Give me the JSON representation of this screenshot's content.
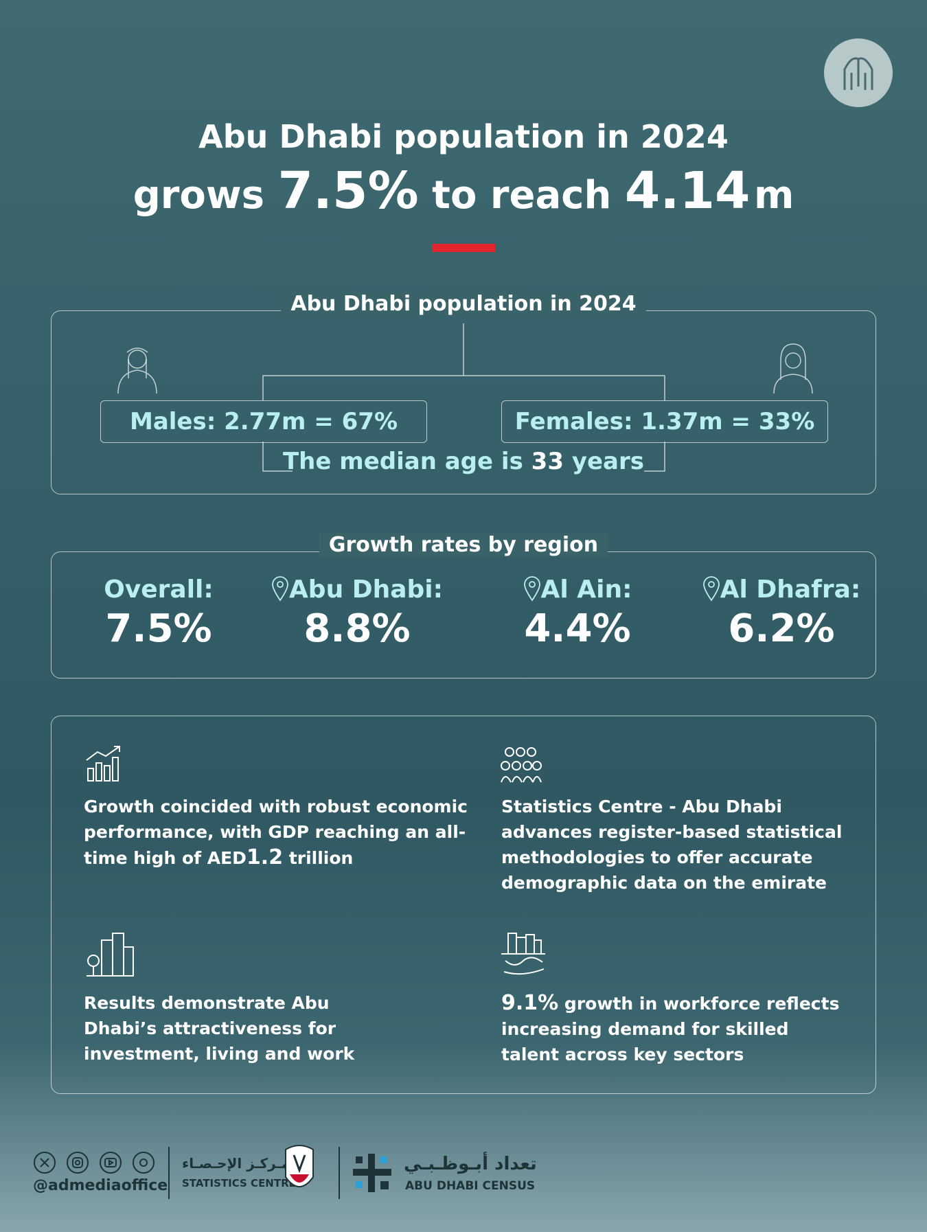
{
  "header": {
    "line1": "Abu Dhabi population in 2024",
    "line2": [
      "grows",
      "7.5%",
      "to reach",
      "4.14",
      "m"
    ]
  },
  "population": {
    "title": "Abu Dhabi population in 2024",
    "males": "Males: 2.77m = 67%",
    "females": "Females: 1.37m = 33%",
    "median": [
      "The median age is",
      "33",
      "years"
    ]
  },
  "growth": {
    "title": "Growth rates by region",
    "regions": [
      {
        "label": "Overall:",
        "value": "7.5%"
      },
      {
        "label": "Abu Dhabi:",
        "value": "8.8%"
      },
      {
        "label": "Al Ain:",
        "value": "4.4%"
      },
      {
        "label": "Al Dhafra:",
        "value": "6.2%"
      }
    ]
  },
  "facts": [
    {
      "parts": [
        "Growth coincided with robust economic performance, with GDP reaching an all-time high of AED",
        "1.2",
        "trillion"
      ]
    },
    {
      "parts": [
        "Statistics Centre - Abu Dhabi advances register-based statistical methodologies to offer accurate demographic data on the emirate"
      ]
    },
    {
      "parts": [
        "Results demonstrate Abu Dhabi’s attractiveness for investment, living and work"
      ]
    },
    {
      "parts": [
        "9.1%",
        "growth in workforce reflects increasing demand for skilled talent across key sectors"
      ]
    }
  ],
  "footer": {
    "handle": "@admediaoffice",
    "sc_arabic": "مـركـز الإحـصـاء",
    "sc_english": "STATISTICS CENTRE",
    "census_arabic": "تعداد أبـوظـبـي",
    "census_english": "ABU DHABI CENSUS"
  }
}
